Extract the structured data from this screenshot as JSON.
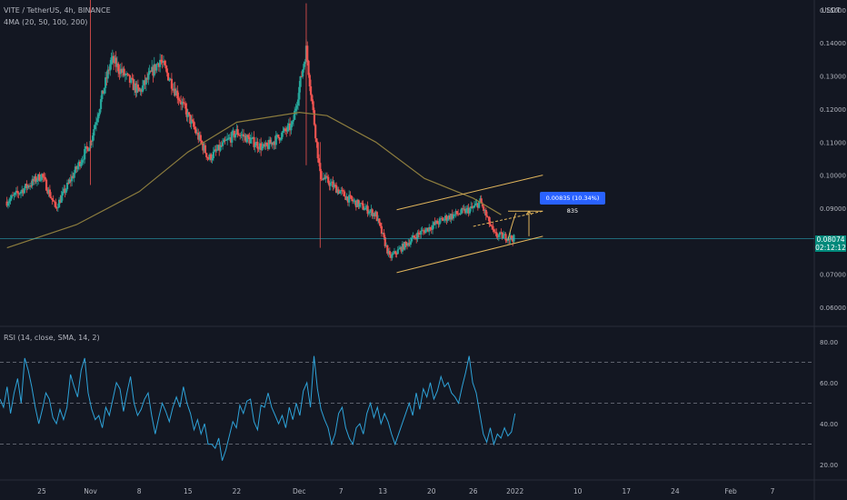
{
  "header": {
    "symbol_line": "VITE / TetherUS, 4h, BINANCE",
    "ma_legend": "4MA (20, 50, 100, 200)",
    "rsi_legend": "RSI (14, close, SMA, 14, 2)",
    "currency": "USDT"
  },
  "last_price": {
    "value": "0.08074",
    "countdown": "02:12:12"
  },
  "measurement_label": "0.00835 (10.34%) 835",
  "colors": {
    "background": "#131722",
    "up_candle": "#26a69a",
    "down_candle": "#ef5350",
    "ma_line": "#8d7d3e",
    "channel": "#e2b65c",
    "rsi_line": "#2ea3d9",
    "price_line": "#2bb5c8",
    "price_tag": "#00897b",
    "measure_box": "#2962ff"
  },
  "chart_data": [
    {
      "type": "candlestick",
      "title": "VITE / TetherUS, 4h, BINANCE",
      "y_axis_ticks": [
        "0.06000",
        "0.07000",
        "0.08000",
        "0.09000",
        "0.10000",
        "0.11000",
        "0.12000",
        "0.13000",
        "0.14000",
        "0.15000"
      ],
      "ylim": [
        0.0545,
        0.153
      ],
      "x_axis_ticks": [
        "25",
        "Nov",
        "8",
        "15",
        "22",
        "Dec",
        "7",
        "13",
        "20",
        "26",
        "2022",
        "10",
        "17",
        "24",
        "Feb",
        "7"
      ],
      "key_points": [
        {
          "date": "Oct 20",
          "price": 0.092
        },
        {
          "date": "Oct 25",
          "price": 0.1
        },
        {
          "date": "Oct 27",
          "price": 0.09
        },
        {
          "date": "Nov 1",
          "price": 0.11
        },
        {
          "date": "Nov 4",
          "price": 0.135
        },
        {
          "date": "Nov 8",
          "price": 0.125
        },
        {
          "date": "Nov 11",
          "price": 0.135
        },
        {
          "date": "Nov 15",
          "price": 0.118
        },
        {
          "date": "Nov 18",
          "price": 0.105
        },
        {
          "date": "Nov 22",
          "price": 0.113
        },
        {
          "date": "Nov 26",
          "price": 0.108
        },
        {
          "date": "Nov 30",
          "price": 0.115
        },
        {
          "date": "Dec 2",
          "price": 0.138
        },
        {
          "date": "Dec 4",
          "price": 0.1
        },
        {
          "date": "Dec 8",
          "price": 0.093
        },
        {
          "date": "Dec 12",
          "price": 0.088
        },
        {
          "date": "Dec 14",
          "price": 0.075
        },
        {
          "date": "Dec 18",
          "price": 0.082
        },
        {
          "date": "Dec 22",
          "price": 0.087
        },
        {
          "date": "Dec 26",
          "price": 0.09
        },
        {
          "date": "Dec 27",
          "price": 0.092
        },
        {
          "date": "Dec 29",
          "price": 0.082
        },
        {
          "date": "Jan 1",
          "price": 0.08074
        }
      ],
      "moving_average_200": [
        {
          "date": "Oct 20",
          "price": 0.078
        },
        {
          "date": "Oct 30",
          "price": 0.085
        },
        {
          "date": "Nov 8",
          "price": 0.095
        },
        {
          "date": "Nov 15",
          "price": 0.107
        },
        {
          "date": "Nov 22",
          "price": 0.116
        },
        {
          "date": "Dec 1",
          "price": 0.119
        },
        {
          "date": "Dec 5",
          "price": 0.118
        },
        {
          "date": "Dec 12",
          "price": 0.11
        },
        {
          "date": "Dec 19",
          "price": 0.099
        },
        {
          "date": "Dec 26",
          "price": 0.093
        },
        {
          "date": "Dec 30",
          "price": 0.088
        }
      ],
      "channel": {
        "lower": [
          {
            "date": "Dec 15",
            "price": 0.0705
          },
          {
            "date": "Jan 5",
            "price": 0.0815
          }
        ],
        "upper": [
          {
            "date": "Dec 15",
            "price": 0.0895
          },
          {
            "date": "Jan 5",
            "price": 0.1
          }
        ],
        "measured_target": 0.0891
      },
      "horizontal_line": 0.08074
    },
    {
      "type": "line",
      "title": "RSI (14, close, SMA, 14, 2)",
      "y_axis_ticks": [
        "20.00",
        "40.00",
        "60.00",
        "80.00"
      ],
      "ylim": [
        13,
        87
      ],
      "bands": [
        70,
        50,
        30
      ],
      "values": [
        52,
        48,
        58,
        45,
        55,
        62,
        50,
        72,
        66,
        58,
        48,
        40,
        47,
        55,
        52,
        43,
        40,
        47,
        42,
        48,
        64,
        58,
        53,
        66,
        72,
        55,
        47,
        42,
        44,
        38,
        48,
        44,
        52,
        60,
        57,
        46,
        55,
        63,
        50,
        44,
        47,
        52,
        55,
        44,
        35,
        43,
        50,
        46,
        41,
        48,
        53,
        48,
        58,
        50,
        45,
        37,
        42,
        35,
        40,
        30,
        30,
        28,
        33,
        22,
        27,
        34,
        41,
        38,
        49,
        45,
        51,
        52,
        41,
        37,
        49,
        48,
        55,
        48,
        44,
        40,
        44,
        38,
        48,
        42,
        50,
        44,
        56,
        60,
        48,
        73,
        57,
        47,
        42,
        38,
        30,
        35,
        45,
        48,
        38,
        33,
        30,
        38,
        40,
        35,
        45,
        50,
        43,
        48,
        40,
        45,
        41,
        35,
        30,
        35,
        40,
        45,
        50,
        44,
        55,
        47,
        57,
        53,
        60,
        52,
        56,
        63,
        58,
        60,
        55,
        53,
        50,
        58,
        65,
        73,
        60,
        55,
        45,
        35,
        31,
        38,
        30,
        35,
        33,
        38,
        34,
        36,
        45
      ]
    }
  ]
}
